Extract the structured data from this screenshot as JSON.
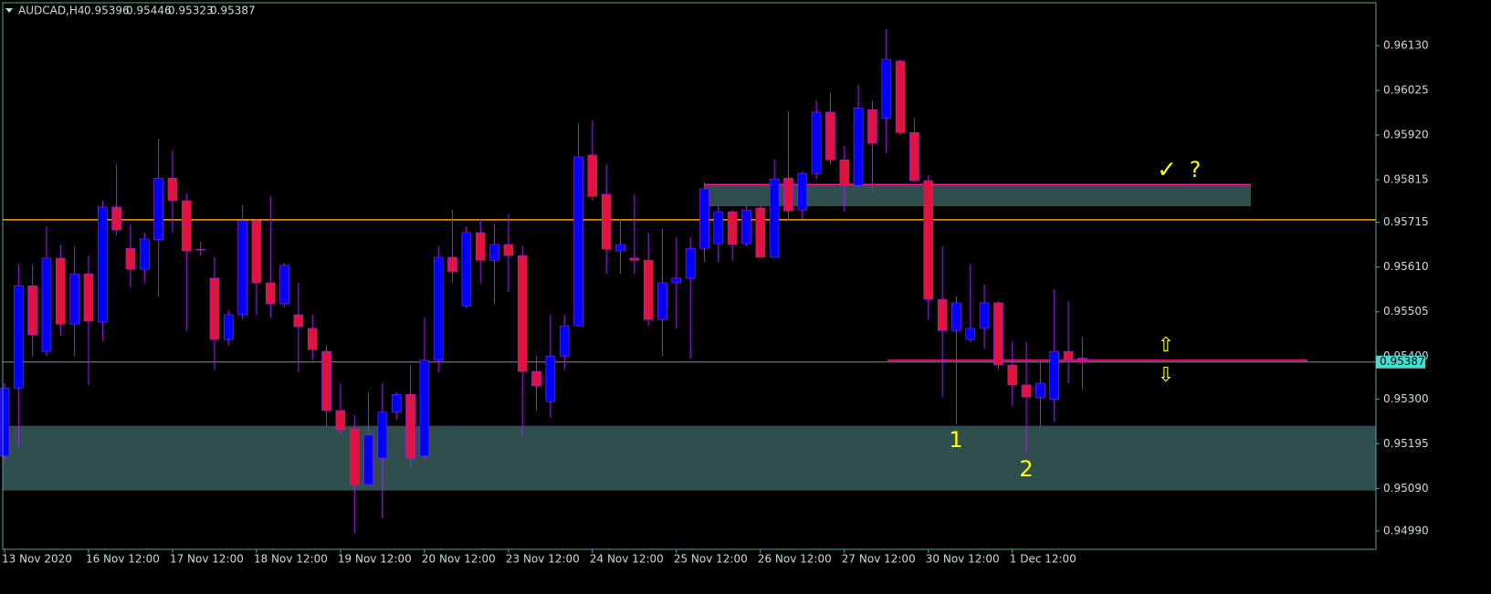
{
  "chart_data": {
    "type": "candlestick",
    "symbol": "AUDCAD,H4",
    "header_values": [
      0.95396,
      0.95446,
      0.95323,
      0.95387
    ],
    "categories": [
      "13 Nov 2020",
      null,
      null,
      null,
      null,
      null,
      "16 Nov 12:00",
      null,
      null,
      null,
      null,
      null,
      "17 Nov 12:00",
      null,
      null,
      null,
      null,
      null,
      "18 Nov 12:00",
      null,
      null,
      null,
      null,
      null,
      "19 Nov 12:00",
      null,
      null,
      null,
      null,
      null,
      "20 Nov 12:00",
      null,
      null,
      null,
      null,
      null,
      "23 Nov 12:00",
      null,
      null,
      null,
      null,
      null,
      "24 Nov 12:00",
      null,
      null,
      null,
      null,
      null,
      "25 Nov 12:00",
      null,
      null,
      null,
      null,
      null,
      "26 Nov 12:00",
      null,
      null,
      null,
      null,
      null,
      "27 Nov 12:00",
      null,
      null,
      null,
      null,
      null,
      "30 Nov 12:00",
      null,
      null,
      null,
      null,
      null,
      "1 Dec 12:00",
      null,
      null,
      null,
      null,
      null
    ],
    "open": [
      0.95166,
      0.95326,
      0.95566,
      0.95412,
      0.95631,
      0.95476,
      0.95594,
      0.95481,
      0.95751,
      0.95654,
      0.95605,
      0.95674,
      0.95819,
      0.95766,
      0.95652,
      0.95584,
      0.9544,
      0.95498,
      0.95719,
      0.95573,
      0.95524,
      0.95498,
      0.95466,
      0.95412,
      0.95273,
      0.9523,
      0.95099,
      0.95161,
      0.95269,
      0.95311,
      0.95166,
      0.95391,
      0.95633,
      0.95519,
      0.95691,
      0.95626,
      0.95663,
      0.95637,
      0.95365,
      0.95294,
      0.95401,
      0.95472,
      0.95873,
      0.95781,
      0.95648,
      0.95631,
      0.95626,
      0.95487,
      0.95573,
      0.95584,
      0.95654,
      0.95665,
      0.9574,
      0.95665,
      0.95749,
      0.95633,
      0.95819,
      0.95744,
      0.9583,
      0.95974,
      0.95862,
      0.95802,
      0.9598,
      0.95959,
      0.96094,
      0.95926,
      0.95813,
      0.95534,
      0.95461,
      0.9544,
      0.95466,
      0.95526,
      0.9538,
      0.95333,
      0.95303,
      0.95299,
      0.95412,
      0.95396
    ],
    "high": [
      0.95337,
      0.95616,
      0.95616,
      0.95706,
      0.95663,
      0.95659,
      0.95637,
      0.95766,
      0.95851,
      0.95712,
      0.95691,
      0.95911,
      0.95884,
      0.95783,
      0.95669,
      0.95633,
      0.95509,
      0.95755,
      0.95723,
      0.95776,
      0.9562,
      0.95573,
      0.95498,
      0.95427,
      0.95337,
      0.95262,
      0.95316,
      0.95337,
      0.95316,
      0.9538,
      0.95491,
      0.95659,
      0.95744,
      0.95706,
      0.95723,
      0.95712,
      0.95734,
      0.95659,
      0.95401,
      0.95498,
      0.95498,
      0.95948,
      0.95954,
      0.95851,
      0.95723,
      0.95781,
      0.95691,
      0.95701,
      0.9568,
      0.9568,
      0.95809,
      0.95755,
      0.95744,
      0.95755,
      0.95755,
      0.95862,
      0.95976,
      0.95834,
      0.96001,
      0.96019,
      0.95894,
      0.96038,
      0.96001,
      0.96169,
      0.96098,
      0.95959,
      0.95826,
      0.95659,
      0.95541,
      0.95616,
      0.95569,
      0.9553,
      0.95434,
      0.95434,
      0.95391,
      0.95558,
      0.9553,
      0.95446
    ],
    "low": [
      0.95155,
      0.95187,
      0.95401,
      0.95401,
      0.95449,
      0.95401,
      0.95333,
      0.95438,
      0.95684,
      0.95562,
      0.95573,
      0.95541,
      0.95691,
      0.95461,
      0.95637,
      0.95369,
      0.95427,
      0.95487,
      0.95498,
      0.95491,
      0.95515,
      0.95363,
      0.95391,
      0.95234,
      0.95219,
      0.94984,
      0.95099,
      0.9502,
      0.95251,
      0.9514,
      0.95155,
      0.95363,
      0.95573,
      0.95513,
      0.95573,
      0.95524,
      0.95551,
      0.95213,
      0.95273,
      0.95256,
      0.95369,
      0.9547,
      0.95766,
      0.95594,
      0.95594,
      0.95594,
      0.95472,
      0.95401,
      0.95466,
      0.95395,
      0.95622,
      0.95622,
      0.95626,
      0.95659,
      0.95633,
      0.95633,
      0.95719,
      0.95723,
      0.95817,
      0.95851,
      0.9574,
      0.95796,
      0.95787,
      0.95877,
      0.9592,
      0.95809,
      0.95487,
      0.95305,
      0.95241,
      0.95434,
      0.95419,
      0.95369,
      0.95284,
      0.95174,
      0.95234,
      0.95247,
      0.95337,
      0.95323
    ],
    "close": [
      0.95326,
      0.95566,
      0.95451,
      0.95631,
      0.95476,
      0.95594,
      0.95483,
      0.95751,
      0.95697,
      0.95605,
      0.95676,
      0.95819,
      0.95766,
      0.95648,
      0.9565,
      0.9544,
      0.95498,
      0.95719,
      0.95573,
      0.95524,
      0.95614,
      0.9547,
      0.95416,
      0.95273,
      0.95228,
      0.95099,
      0.95215,
      0.95269,
      0.95311,
      0.95161,
      0.95391,
      0.95633,
      0.95599,
      0.95691,
      0.95626,
      0.95663,
      0.95637,
      0.95365,
      0.95331,
      0.95401,
      0.95472,
      0.95869,
      0.95776,
      0.95652,
      0.95663,
      0.95626,
      0.95487,
      0.95573,
      0.95584,
      0.95654,
      0.95794,
      0.9574,
      0.95663,
      0.95744,
      0.95633,
      0.95817,
      0.95742,
      0.9583,
      0.95974,
      0.95862,
      0.95802,
      0.95984,
      0.95901,
      0.96098,
      0.95926,
      0.95813,
      0.95534,
      0.95461,
      0.95526,
      0.95466,
      0.95526,
      0.9538,
      0.95333,
      0.95305,
      0.95337,
      0.95412,
      0.95391,
      0.95387
    ],
    "up_color": "#0000ff",
    "down_color": "#e0143c",
    "wick_color": "#a020f0",
    "ylim": [
      0.94947,
      0.96231
    ],
    "yticks": [
      {
        "value": 0.9613,
        "label": "0.96130"
      },
      0.96025,
      {
        "value": 0.9592,
        "label": "0.95920"
      },
      0.95815,
      0.95715,
      {
        "value": 0.9561,
        "label": "0.95610"
      },
      0.95505,
      {
        "value": 0.954,
        "label": "0.95400"
      },
      {
        "value": 0.953,
        "label": "0.95300"
      },
      0.95195,
      {
        "value": 0.9509,
        "label": "0.95090"
      },
      {
        "value": 0.9499,
        "label": "0.94990"
      }
    ],
    "last_price": 0.95387,
    "zones": [
      {
        "from": 0.95085,
        "to": 0.95237
      },
      {
        "from": 0.95753,
        "to": 0.95804
      }
    ],
    "zone_color": "#2f4f4f",
    "levels": [
      {
        "value": 0.95721,
        "color": "#ffa500"
      },
      {
        "value": 0.95804,
        "color": "#ff1493"
      },
      {
        "value": 0.95391,
        "color": "#ff1493"
      }
    ],
    "annotations": [
      "✓",
      "?",
      "⇧",
      "⇩",
      "1",
      "2"
    ]
  }
}
